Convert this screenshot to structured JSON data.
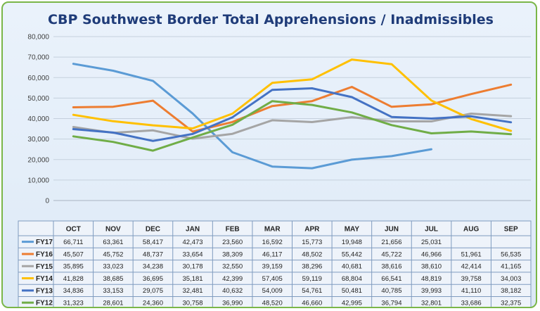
{
  "chart_data": {
    "type": "line",
    "title": "CBP Southwest Border Total Apprehensions / Inadmissibles",
    "categories": [
      "OCT",
      "NOV",
      "DEC",
      "JAN",
      "FEB",
      "MAR",
      "APR",
      "MAY",
      "JUN",
      "JUL",
      "AUG",
      "SEP"
    ],
    "ylim": [
      0,
      80000
    ],
    "yticks": [
      "0",
      "10,000",
      "20,000",
      "30,000",
      "40,000",
      "50,000",
      "60,000",
      "70,000",
      "80,000"
    ],
    "grid": true,
    "legend": "data-table",
    "series": [
      {
        "name": "FY17",
        "color": "#5b9bd5",
        "values": [
          66711,
          63361,
          58417,
          42473,
          23560,
          16592,
          15773,
          19948,
          21656,
          25031,
          null,
          null
        ],
        "labels": [
          "66,711",
          "63,361",
          "58,417",
          "42,473",
          "23,560",
          "16,592",
          "15,773",
          "19,948",
          "21,656",
          "25,031",
          "",
          ""
        ]
      },
      {
        "name": "FY16",
        "color": "#ed7d31",
        "values": [
          45507,
          45752,
          48737,
          33654,
          38309,
          46117,
          48502,
          55442,
          45722,
          46966,
          51961,
          56535
        ],
        "labels": [
          "45,507",
          "45,752",
          "48,737",
          "33,654",
          "38,309",
          "46,117",
          "48,502",
          "55,442",
          "45,722",
          "46,966",
          "51,961",
          "56,535"
        ]
      },
      {
        "name": "FY15",
        "color": "#a5a5a5",
        "values": [
          35895,
          33023,
          34238,
          30178,
          32550,
          39159,
          38296,
          40681,
          38616,
          38610,
          42414,
          41165
        ],
        "labels": [
          "35,895",
          "33,023",
          "34,238",
          "30,178",
          "32,550",
          "39,159",
          "38,296",
          "40,681",
          "38,616",
          "38,610",
          "42,414",
          "41,165"
        ]
      },
      {
        "name": "FY14",
        "color": "#ffc000",
        "values": [
          41828,
          38685,
          36695,
          35181,
          42399,
          57405,
          59119,
          68804,
          66541,
          48819,
          39758,
          34003
        ],
        "labels": [
          "41,828",
          "38,685",
          "36,695",
          "35,181",
          "42,399",
          "57,405",
          "59,119",
          "68,804",
          "66,541",
          "48,819",
          "39,758",
          "34,003"
        ]
      },
      {
        "name": "FY13",
        "color": "#4472c4",
        "values": [
          34836,
          33153,
          29075,
          32481,
          40632,
          54009,
          54761,
          50481,
          40785,
          39993,
          41110,
          38182
        ],
        "labels": [
          "34,836",
          "33,153",
          "29,075",
          "32,481",
          "40,632",
          "54,009",
          "54,761",
          "50,481",
          "40,785",
          "39,993",
          "41,110",
          "38,182"
        ]
      },
      {
        "name": "FY12",
        "color": "#70ad47",
        "values": [
          31323,
          28601,
          24360,
          30758,
          36990,
          48520,
          46660,
          42995,
          36794,
          32801,
          33686,
          32375
        ],
        "labels": [
          "31,323",
          "28,601",
          "24,360",
          "30,758",
          "36,990",
          "48,520",
          "46,660",
          "42,995",
          "36,794",
          "32,801",
          "33,686",
          "32,375"
        ]
      }
    ]
  }
}
